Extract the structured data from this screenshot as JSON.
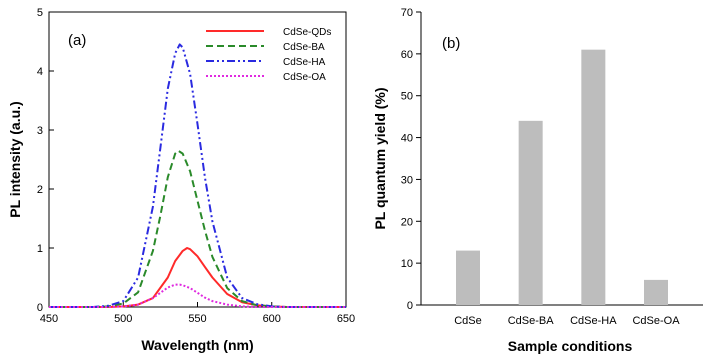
{
  "chart_data": [
    {
      "type": "line",
      "panel_label": "(a)",
      "xlabel": "Wavelength (nm)",
      "ylabel": "PL intensity (a.u.)",
      "xlim": [
        450,
        650
      ],
      "ylim": [
        0,
        5
      ],
      "xticks": [
        450,
        500,
        550,
        600,
        650
      ],
      "yticks": [
        0,
        1,
        2,
        3,
        4,
        5
      ],
      "grid": false,
      "legend_position": "top-right",
      "series": [
        {
          "name": "CdSe-QDs",
          "color": "#ff2a2a",
          "dash": "solid",
          "x": [
            450,
            490,
            500,
            510,
            520,
            530,
            535,
            540,
            543,
            545,
            550,
            555,
            560,
            570,
            580,
            590,
            600,
            610,
            650
          ],
          "y": [
            0,
            0.0,
            0.01,
            0.04,
            0.15,
            0.5,
            0.78,
            0.95,
            1.0,
            0.98,
            0.86,
            0.68,
            0.5,
            0.22,
            0.08,
            0.03,
            0.01,
            0.0,
            0
          ]
        },
        {
          "name": "CdSe-BA",
          "color": "#2a8a2a",
          "dash": "dashed",
          "x": [
            450,
            480,
            490,
            500,
            510,
            520,
            525,
            530,
            535,
            537,
            540,
            545,
            550,
            555,
            560,
            570,
            580,
            590,
            600,
            610,
            650
          ],
          "y": [
            0,
            0.0,
            0.01,
            0.06,
            0.25,
            0.95,
            1.55,
            2.2,
            2.6,
            2.65,
            2.6,
            2.3,
            1.8,
            1.3,
            0.85,
            0.32,
            0.1,
            0.03,
            0.01,
            0.0,
            0
          ]
        },
        {
          "name": "CdSe-HA",
          "color": "#2a2ae0",
          "dash": "dashdotdot",
          "x": [
            450,
            480,
            490,
            500,
            510,
            520,
            525,
            530,
            535,
            538,
            540,
            545,
            550,
            555,
            560,
            570,
            580,
            590,
            600,
            610,
            650
          ],
          "y": [
            0,
            0.0,
            0.02,
            0.1,
            0.5,
            1.7,
            2.7,
            3.7,
            4.3,
            4.45,
            4.4,
            3.95,
            3.1,
            2.2,
            1.45,
            0.5,
            0.15,
            0.05,
            0.01,
            0.0,
            0
          ]
        },
        {
          "name": "CdSe-OA",
          "color": "#e02ae0",
          "dash": "dotted",
          "x": [
            450,
            490,
            500,
            510,
            520,
            525,
            530,
            535,
            538,
            540,
            545,
            550,
            555,
            560,
            570,
            580,
            590,
            650
          ],
          "y": [
            0,
            0.0,
            0.01,
            0.04,
            0.15,
            0.24,
            0.33,
            0.38,
            0.38,
            0.37,
            0.32,
            0.24,
            0.16,
            0.1,
            0.04,
            0.01,
            0.0,
            0
          ]
        }
      ]
    },
    {
      "type": "bar",
      "panel_label": "(b)",
      "xlabel": "Sample conditions",
      "ylabel": "PL quantum yield (%)",
      "ylim": [
        0,
        70
      ],
      "yticks": [
        0,
        10,
        20,
        30,
        40,
        50,
        60,
        70
      ],
      "grid": false,
      "categories": [
        "CdSe",
        "CdSe-BA",
        "CdSe-HA",
        "CdSe-OA"
      ],
      "values": [
        13,
        44,
        61,
        6
      ],
      "bar_color": "#bdbdbd"
    }
  ]
}
